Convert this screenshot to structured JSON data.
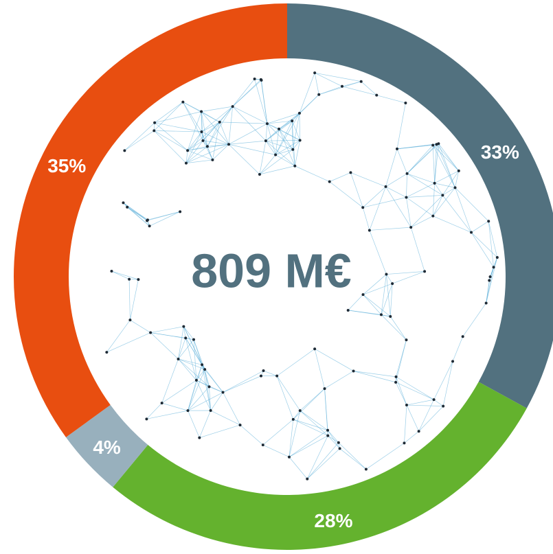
{
  "chart_data": {
    "type": "donut",
    "center_label": "809 M€",
    "values": [
      33,
      28,
      4,
      35
    ],
    "value_labels": [
      "33%",
      "28%",
      "4%",
      "35%"
    ],
    "colors": [
      "#52717f",
      "#64b22e",
      "#98b0bd",
      "#e84e10"
    ]
  }
}
